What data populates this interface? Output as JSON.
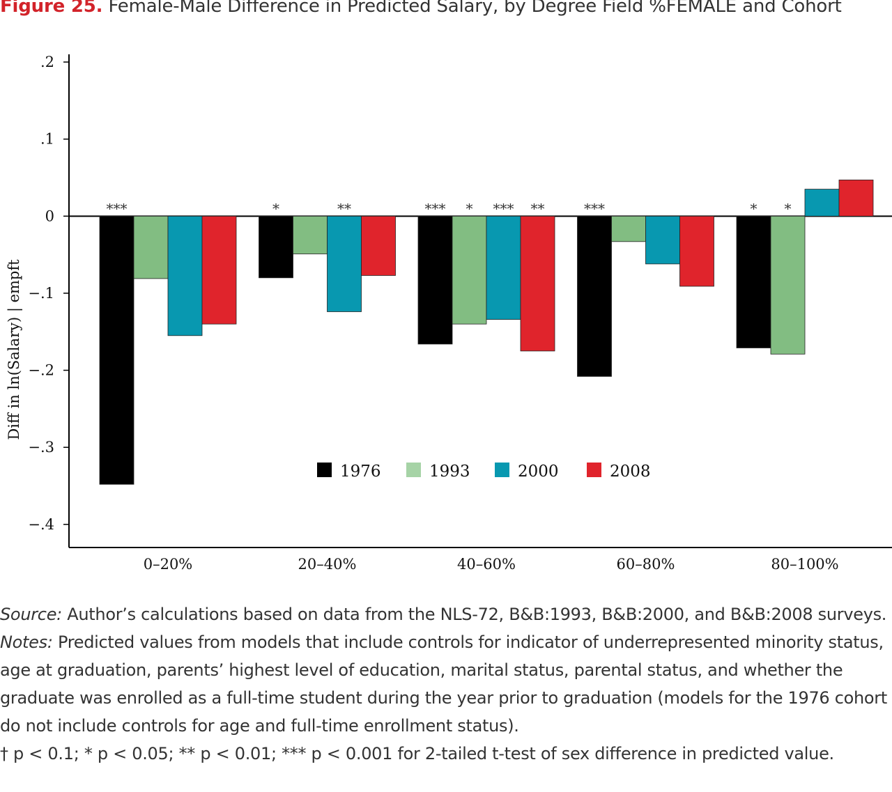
{
  "header": {
    "figure_label": "Figure 25.",
    "title": "Female-Male Difference in Predicted Salary, by Degree Field %FEMALE and Cohort"
  },
  "chart_data": {
    "type": "bar",
    "ylabel": "Diff in ln(Salary) | empft",
    "xlabel": "",
    "ylim": [
      -0.43,
      0.21
    ],
    "yticks": [
      0.2,
      0.1,
      0,
      -0.1,
      -0.2,
      -0.3,
      -0.4
    ],
    "ytick_labels": [
      ".2",
      ".1",
      "0",
      "−.1",
      "−.2",
      "−.3",
      "−.4"
    ],
    "categories": [
      "0–20%",
      "20–40%",
      "40–60%",
      "60–80%",
      "80–100%"
    ],
    "series": [
      {
        "name": "1976",
        "color": "#000000",
        "values": [
          -0.348,
          -0.08,
          -0.166,
          -0.208,
          -0.171
        ],
        "sig": [
          "***",
          "*",
          "***",
          "***",
          "*"
        ]
      },
      {
        "name": "1993",
        "color": "#82bd82",
        "values": [
          -0.081,
          -0.049,
          -0.14,
          -0.033,
          -0.179
        ],
        "sig": [
          "",
          "",
          "*",
          "",
          "*"
        ]
      },
      {
        "name": "2000",
        "color": "#0898b0",
        "values": [
          -0.155,
          -0.124,
          -0.134,
          -0.062,
          0.035
        ],
        "sig": [
          "",
          "**",
          "***",
          "",
          ""
        ]
      },
      {
        "name": "2008",
        "color": "#e0242c",
        "values": [
          -0.14,
          -0.077,
          -0.175,
          -0.091,
          0.047
        ],
        "sig": [
          "",
          "",
          "**",
          "",
          ""
        ]
      }
    ],
    "legend_swatch_colors": [
      "#000000",
      "#a6d3a6",
      "#0898b0",
      "#e0242c"
    ],
    "legend_position": "lower-center",
    "grid": false
  },
  "notes": {
    "source_label": "Source:",
    "source_text": " Author’s calculations based on data from the NLS-72, B&B:1993, B&B:2000, and B&B:2008 surveys.",
    "notes_label": "Notes:",
    "notes_text": " Predicted values from models that include controls for indicator of underrepresented minority status, age at graduation, parents’ highest level of education, marital status, parental status, and whether the graduate was enrolled as a full-time student during the year prior to graduation (models for the 1976 cohort do not include controls for age and full-time enrollment status).",
    "significance_text": "† p < 0.1; * p < 0.05; ** p < 0.01; *** p < 0.001 for 2-tailed t-test of sex difference in predicted value."
  }
}
